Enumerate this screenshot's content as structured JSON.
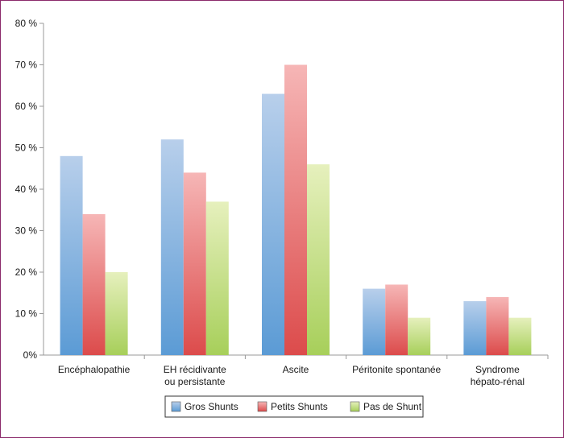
{
  "chart_data": {
    "type": "bar",
    "categories": [
      [
        "Encéphalopathie"
      ],
      [
        "EH récidivante",
        "ou persistante"
      ],
      [
        "Ascite"
      ],
      [
        "Péritonite spontanée"
      ],
      [
        "Syndrome",
        "hépato-rénal"
      ]
    ],
    "series": [
      {
        "name": "Gros Shunts",
        "values": [
          48,
          52,
          63,
          16,
          13
        ],
        "color_top": "#b8cfeb",
        "color_bottom": "#5b9bd5"
      },
      {
        "name": "Petits Shunts",
        "values": [
          34,
          44,
          70,
          17,
          14
        ],
        "color_top": "#f6b6b6",
        "color_bottom": "#dc4b4b"
      },
      {
        "name": "Pas de Shunt",
        "values": [
          20,
          37,
          46,
          9,
          9
        ],
        "color_top": "#e6f0bd",
        "color_bottom": "#a7cf5a"
      }
    ],
    "yticks": [
      "0%",
      "10 %",
      "20 %",
      "30 %",
      "40 %",
      "50 %",
      "60 %",
      "70 %",
      "80 %"
    ],
    "ylim": [
      0,
      80
    ],
    "grid": false,
    "legend_position": "bottom",
    "frame_color": "#8b2a6b"
  }
}
